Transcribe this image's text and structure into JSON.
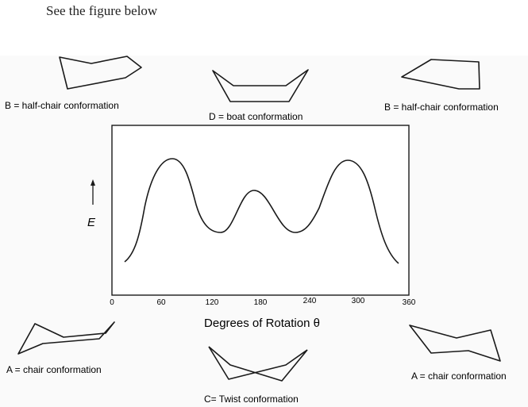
{
  "intro_text": "See the figure below",
  "axis": {
    "xlabel": "Degrees of Rotation θ",
    "ylabel": "E",
    "ticks": [
      "0",
      "60",
      "120",
      "180",
      "240",
      "300",
      "360"
    ]
  },
  "labels": {
    "half_chair_left": "B = half-chair conformation",
    "boat": "D = boat conformation",
    "half_chair_right": "B = half-chair conformation",
    "chair_left": "A = chair conformation",
    "twist": "C= Twist conformation",
    "chair_right": "A = chair conformation"
  }
}
